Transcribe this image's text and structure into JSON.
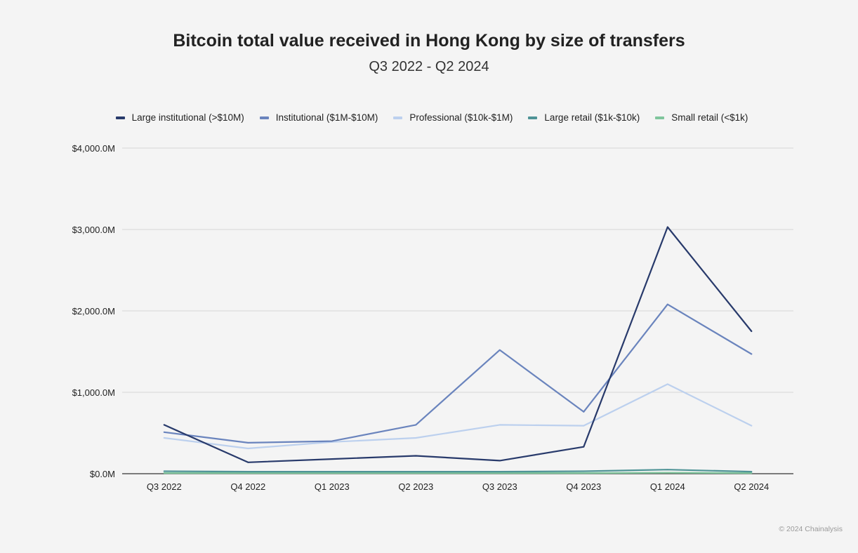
{
  "chart_data": {
    "type": "line",
    "title": "Bitcoin total value received in Hong Kong by size of transfers",
    "subtitle": "Q3 2022 - Q2 2024",
    "xlabel": "",
    "ylabel": "",
    "categories": [
      "Q3 2022",
      "Q4 2022",
      "Q1 2023",
      "Q2 2023",
      "Q3 2023",
      "Q4 2023",
      "Q1 2024",
      "Q2 2024"
    ],
    "y_ticks": [
      0,
      1000,
      2000,
      3000,
      4000
    ],
    "y_tick_labels": [
      "$0.0M",
      "$1,000.0M",
      "$2,000.0M",
      "$3,000.0M",
      "$4,000.0M"
    ],
    "ylim": [
      0,
      4000
    ],
    "grid": true,
    "legend_position": "top",
    "series": [
      {
        "name": "Large institutional (>$10M)",
        "color": "#283a6b",
        "values": [
          600,
          140,
          180,
          220,
          160,
          330,
          3030,
          1750
        ]
      },
      {
        "name": "Institutional ($1M-$10M)",
        "color": "#6a84bd",
        "values": [
          510,
          380,
          400,
          600,
          1520,
          760,
          2080,
          1470
        ]
      },
      {
        "name": "Professional ($10k-$1M)",
        "color": "#bcd0ee",
        "values": [
          440,
          310,
          390,
          440,
          600,
          590,
          1100,
          590
        ]
      },
      {
        "name": "Large retail ($1k-$10k)",
        "color": "#4e9396",
        "values": [
          30,
          25,
          25,
          25,
          25,
          30,
          50,
          25
        ]
      },
      {
        "name": "Small retail (<$1k)",
        "color": "#7fc59c",
        "values": [
          8,
          8,
          8,
          8,
          8,
          8,
          12,
          8
        ]
      }
    ]
  },
  "credit": "© 2024 Chainalysis"
}
